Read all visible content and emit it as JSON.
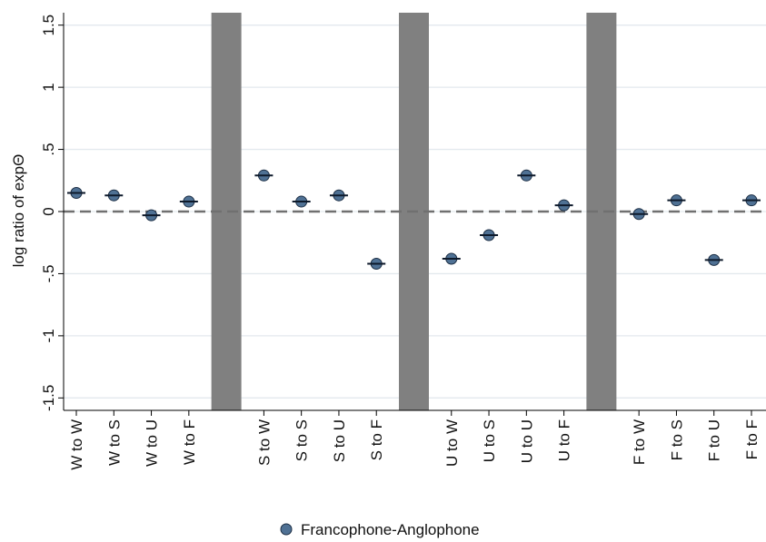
{
  "chart_data": {
    "type": "dot",
    "y_label": "log ratio of expΘ",
    "categories": [
      "W to W",
      "W to S",
      "W to U",
      "W to F",
      null,
      "S to W",
      "S to S",
      "S to U",
      "S to F",
      null,
      "U to W",
      "U to S",
      "U to U",
      "U to F",
      null,
      "F to W",
      "F to S",
      "F to U",
      "F to F"
    ],
    "series": [
      {
        "name": "Francophone-Anglophone",
        "color": "#4f7194",
        "values": [
          0.15,
          0.13,
          -0.03,
          0.08,
          null,
          0.29,
          0.08,
          0.13,
          -0.42,
          null,
          -0.38,
          -0.19,
          0.29,
          0.05,
          null,
          -0.02,
          0.09,
          -0.39,
          0.09
        ]
      }
    ],
    "separator_color": "#808080",
    "reference_line": 0,
    "ylim": [
      -1.6,
      1.6
    ],
    "yticks": [
      {
        "value": -1.5,
        "label": "-1.5"
      },
      -1,
      {
        "value": -0.5,
        "label": "-.5"
      },
      0,
      {
        "value": 0.5,
        "label": ".5"
      },
      1,
      1.5
    ],
    "grid": true
  }
}
